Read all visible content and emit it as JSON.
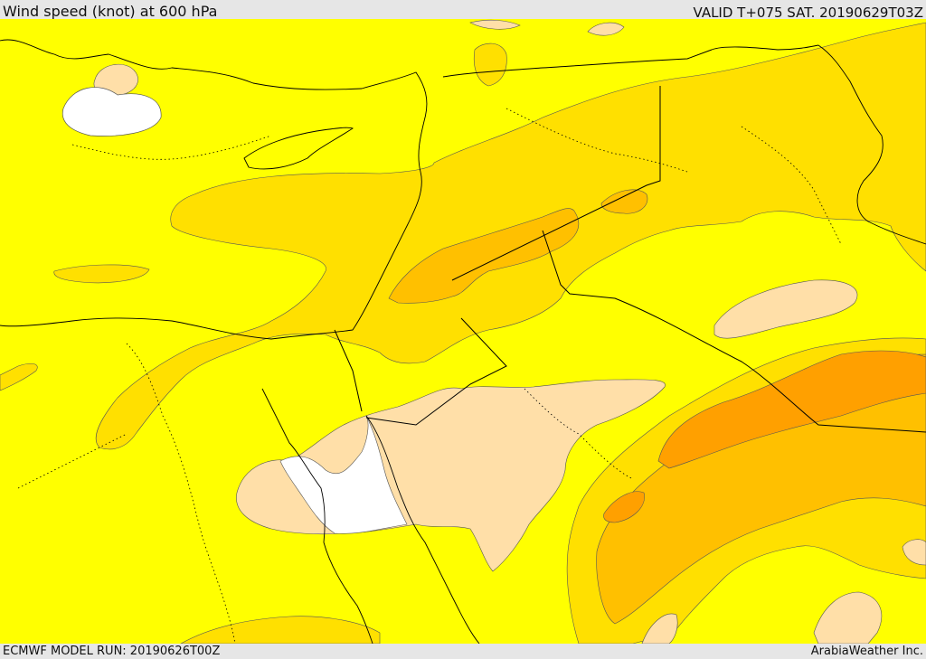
{
  "header": {
    "title": "Wind speed (knot) at 600 hPa",
    "valid": "VALID T+075 SAT. 20190629T03Z"
  },
  "footer": {
    "model_run": "ECMWF MODEL RUN: 20190626T00Z",
    "credit": "ArabiaWeather Inc."
  },
  "colors": {
    "background_band": "#ffff00",
    "band_2": "#ffe000",
    "band_3": "#ffc000",
    "band_4": "#ffa000",
    "light_band": "#ffdfa8",
    "calm": "#ffffff",
    "frame": "#e6e6e6"
  }
}
